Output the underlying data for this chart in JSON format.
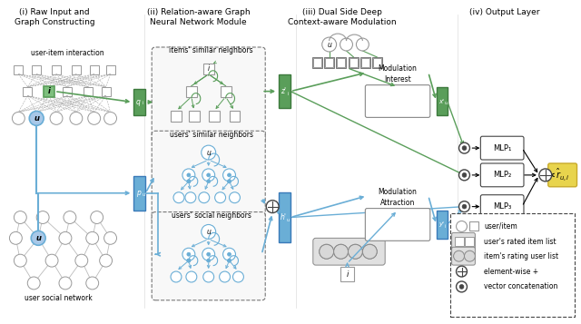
{
  "title_i": "(i) Raw Input and\nGraph Constructing",
  "title_ii": "(ii) Relation-aware Graph\nNeural Network Module",
  "title_iii": "(iii) Dual Side Deep\nContext-aware Modulation",
  "title_iv": "(iv) Output Layer",
  "bg_color": "#ffffff",
  "green_color": "#5a9e5a",
  "green_dark": "#3d7a3d",
  "green_light": "#7dbf7d",
  "blue_color": "#6aaed6",
  "blue_dark": "#3a7ab8",
  "blue_light": "#a8c8e8",
  "gray_color": "#888888",
  "dark_gray": "#444444",
  "yellow_color": "#e8d44d",
  "yellow_dark": "#c8aa2a",
  "node_edge": "#999999",
  "dashed_box_color": "#777777"
}
